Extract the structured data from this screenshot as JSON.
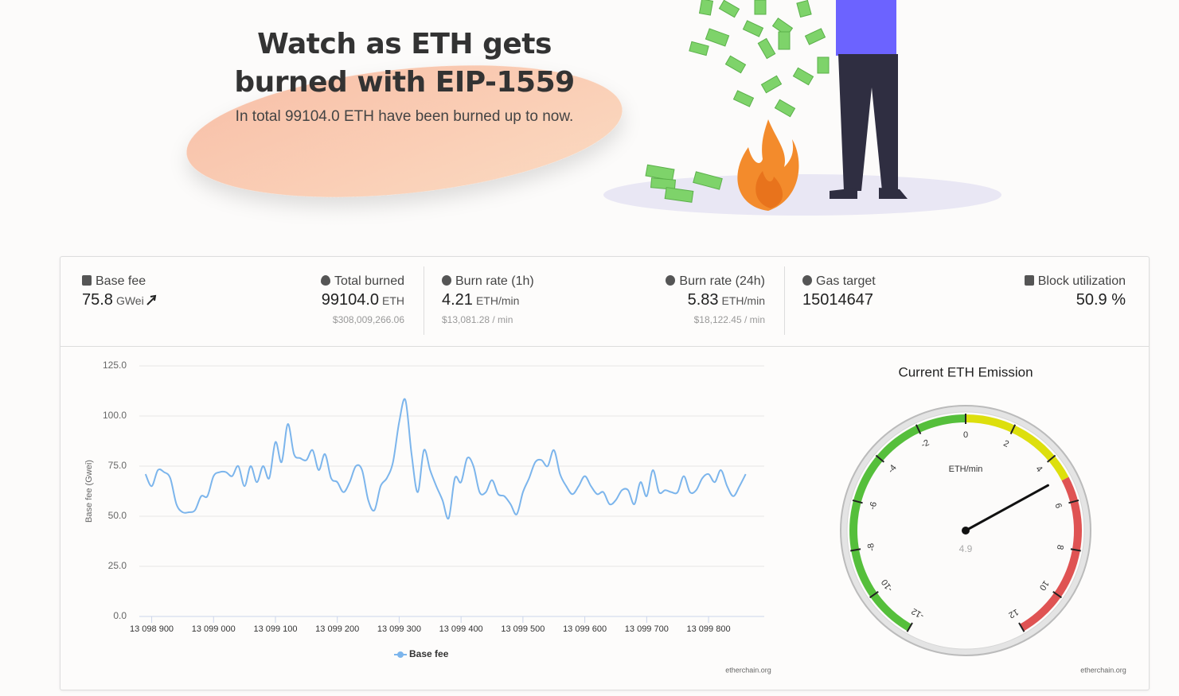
{
  "header": {
    "title": "Watch as ETH gets burned with EIP-1559",
    "subtitle": "In total 99104.0 ETH have been burned up to now."
  },
  "stats": [
    {
      "label": "Base fee",
      "value": "75.8",
      "unit": "GWei"
    },
    {
      "label": "Total burned",
      "value": "99104.0",
      "unit": "ETH",
      "sub": "$308,009,266.06"
    },
    {
      "label": "Burn rate (1h)",
      "value": "4.21",
      "unit": "ETH/min",
      "sub": "$13,081.28 / min"
    },
    {
      "label": "Burn rate (24h)",
      "value": "5.83",
      "unit": "ETH/min",
      "sub": "$18,122.45 / min"
    },
    {
      "label": "Gas target",
      "value": "15014647"
    },
    {
      "label": "Block utilization",
      "value": "50.9 %"
    }
  ],
  "chart_data": [
    {
      "type": "line",
      "y_label": "Base fee (Gwei)",
      "credit": "etherchain.org",
      "grid": true,
      "xlim": [
        13098880,
        13099890
      ],
      "xticks": [
        {
          "value": 13098900,
          "label": "13 098 900"
        },
        {
          "value": 13099000,
          "label": "13 099 000"
        },
        {
          "value": 13099100,
          "label": "13 099 100"
        },
        {
          "value": 13099200,
          "label": "13 099 200"
        },
        {
          "value": 13099300,
          "label": "13 099 300"
        },
        {
          "value": 13099400,
          "label": "13 099 400"
        },
        {
          "value": 13099500,
          "label": "13 099 500"
        },
        {
          "value": 13099600,
          "label": "13 099 600"
        },
        {
          "value": 13099700,
          "label": "13 099 700"
        },
        {
          "value": 13099800,
          "label": "13 099 800"
        }
      ],
      "ylim": [
        0,
        125
      ],
      "yticks": [
        {
          "value": 0,
          "label": "0.0"
        },
        {
          "value": 25,
          "label": "25.0"
        },
        {
          "value": 50,
          "label": "50.0"
        },
        {
          "value": 75,
          "label": "75.0"
        },
        {
          "value": 100,
          "label": "100.0"
        },
        {
          "value": 125,
          "label": "125.0"
        }
      ],
      "x": [
        13098890,
        13098900,
        13098910,
        13098920,
        13098930,
        13098940,
        13098950,
        13098960,
        13098970,
        13098980,
        13098990,
        13099000,
        13099010,
        13099020,
        13099030,
        13099040,
        13099050,
        13099060,
        13099070,
        13099080,
        13099090,
        13099100,
        13099110,
        13099120,
        13099130,
        13099140,
        13099150,
        13099160,
        13099170,
        13099180,
        13099190,
        13099200,
        13099210,
        13099220,
        13099230,
        13099240,
        13099250,
        13099260,
        13099270,
        13099280,
        13099290,
        13099300,
        13099310,
        13099320,
        13099330,
        13099340,
        13099350,
        13099360,
        13099370,
        13099380,
        13099390,
        13099400,
        13099410,
        13099420,
        13099430,
        13099440,
        13099450,
        13099460,
        13099470,
        13099480,
        13099490,
        13099500,
        13099510,
        13099520,
        13099530,
        13099540,
        13099550,
        13099560,
        13099570,
        13099580,
        13099590,
        13099600,
        13099610,
        13099620,
        13099630,
        13099640,
        13099650,
        13099660,
        13099670,
        13099680,
        13099690,
        13099700,
        13099710,
        13099720,
        13099730,
        13099740,
        13099750,
        13099760,
        13099770,
        13099780,
        13099790,
        13099800,
        13099810,
        13099820,
        13099830,
        13099840,
        13099850,
        13099860
      ],
      "series": [
        {
          "name": "Base fee",
          "color": "#7cb5ec",
          "values": [
            71,
            65,
            73,
            72,
            69,
            56,
            52,
            52,
            53,
            60,
            60,
            70,
            72,
            72,
            70,
            75,
            65,
            75,
            67,
            75,
            69,
            87,
            77,
            96,
            81,
            79,
            78,
            83,
            73,
            81,
            69,
            67,
            62,
            67,
            75,
            73,
            58,
            53,
            65,
            69,
            77,
            97,
            108,
            81,
            62,
            83,
            73,
            65,
            58,
            49,
            69,
            67,
            79,
            75,
            62,
            62,
            68,
            61,
            60,
            56,
            51,
            62,
            69,
            77,
            78,
            75,
            83,
            71,
            65,
            61,
            65,
            70,
            65,
            61,
            62,
            56,
            58,
            63,
            63,
            56,
            67,
            60,
            73,
            62,
            63,
            62,
            62,
            70,
            62,
            63,
            69,
            71,
            67,
            73,
            65,
            60,
            65,
            71
          ]
        }
      ]
    },
    {
      "type": "gauge",
      "title": "Current ETH Emission",
      "unit_label": "ETH/min",
      "credit": "etherchain.org",
      "ylim": [
        -12,
        12
      ],
      "yticks": [
        -12,
        -10,
        -8,
        -6,
        -4,
        -2,
        0,
        2,
        4,
        6,
        8,
        10,
        12
      ],
      "bands": [
        {
          "from": -12,
          "to": 0,
          "color": "#55bf3b"
        },
        {
          "from": 0,
          "to": 5,
          "color": "#dddf0d"
        },
        {
          "from": 5,
          "to": 12,
          "color": "#df5353"
        }
      ],
      "value": 4.9
    }
  ]
}
